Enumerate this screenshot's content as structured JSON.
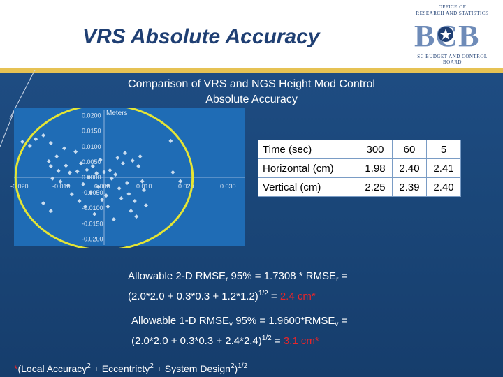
{
  "title": "VRS Absolute Accuracy",
  "logo": {
    "line1": "OFFICE OF",
    "line2": "RESEARCH AND STATISTICS",
    "main": "BCB",
    "bottom": "SC BUDGET AND CONTROL BOARD"
  },
  "chart_title_line1": "Comparison of VRS and NGS Height Mod Control",
  "chart_title_line2": "Absolute Accuracy",
  "chart_data": {
    "type": "scatter",
    "ylabel": "Meters",
    "x_ticks": [
      "-0.020",
      "-0.010",
      "0.000",
      "0.010",
      "0.020",
      "0.030"
    ],
    "y_ticks": [
      "0.0200",
      "0.0150",
      "0.0100",
      "0.0050",
      "0.0000",
      "-0.0050",
      "-0.0100",
      "-0.0150",
      "-0.0200"
    ],
    "xlim": [
      -0.02,
      0.03
    ],
    "ylim": [
      -0.02,
      0.02
    ],
    "points": [
      [
        -0.0195,
        0.0115
      ],
      [
        -0.0177,
        0.0102
      ],
      [
        -0.0163,
        0.0124
      ],
      [
        -0.0145,
        0.0136
      ],
      [
        -0.0127,
        0.0111
      ],
      [
        -0.0132,
        0.0052
      ],
      [
        -0.0127,
        0.0036
      ],
      [
        -0.0123,
        -0.0004
      ],
      [
        -0.0113,
        0.0068
      ],
      [
        -0.0109,
        0.0021
      ],
      [
        -0.0104,
        -0.0014
      ],
      [
        -0.0095,
        0.0094
      ],
      [
        -0.0091,
        0.0038
      ],
      [
        -0.0086,
        -0.0027
      ],
      [
        -0.0082,
        0.0015
      ],
      [
        -0.0077,
        -0.0055
      ],
      [
        -0.0068,
        0.0083
      ],
      [
        -0.0064,
        0.0019
      ],
      [
        -0.0059,
        -0.0077
      ],
      [
        -0.0055,
        0.0045
      ],
      [
        -0.005,
        -0.0022
      ],
      [
        -0.0045,
        -0.0095
      ],
      [
        -0.0041,
        0.0024
      ],
      [
        -0.0036,
        0.0
      ],
      [
        -0.0032,
        -0.005
      ],
      [
        -0.0027,
        0.0036
      ],
      [
        -0.0023,
        -0.0119
      ],
      [
        -0.0018,
        0.0013
      ],
      [
        -0.0014,
        -0.0031
      ],
      [
        -0.0009,
        0.0057
      ],
      [
        -0.0005,
        -0.0073
      ],
      [
        0.0,
        0.0017
      ],
      [
        0.0005,
        -0.0059
      ],
      [
        0.0009,
        -0.0095
      ],
      [
        0.0014,
        0.0023
      ],
      [
        0.0018,
        -0.0004
      ],
      [
        0.0023,
        -0.0136
      ],
      [
        0.0027,
        0.0009
      ],
      [
        0.0032,
        0.0063
      ],
      [
        0.0036,
        -0.0036
      ],
      [
        0.0041,
        -0.0068
      ],
      [
        0.0045,
        0.0045
      ],
      [
        0.005,
        0.0079
      ],
      [
        0.0055,
        -0.0018
      ],
      [
        0.0059,
        -0.0054
      ],
      [
        0.0064,
        -0.0109
      ],
      [
        0.0068,
        0.0054
      ],
      [
        0.0073,
        -0.0077
      ],
      [
        0.0077,
        -0.0127
      ],
      [
        0.0082,
        0.0036
      ],
      [
        0.0086,
        0.0068
      ],
      [
        0.0091,
        -0.0013
      ],
      [
        0.0095,
        -0.0041
      ],
      [
        0.01,
        -0.0091
      ],
      [
        -0.0145,
        -0.0084
      ],
      [
        -0.0127,
        -0.0109
      ],
      [
        0.0159,
        0.0118
      ],
      [
        0.0164,
        0.0016
      ],
      [
        0.0182,
        -0.0013
      ],
      [
        0.0009,
        -0.0027
      ]
    ],
    "circle": {
      "cx": 0.0,
      "cy": 0.0,
      "r": 0.024
    }
  },
  "table": {
    "rows": [
      {
        "label": "Time (sec)",
        "values": [
          "300",
          "60",
          "5"
        ]
      },
      {
        "label": "Horizontal (cm)",
        "values": [
          "1.98",
          "2.40",
          "2.41"
        ]
      },
      {
        "label": "Vertical (cm)",
        "values": [
          "2.25",
          "2.39",
          "2.40"
        ]
      }
    ]
  },
  "formula1": {
    "line1_a": "Allowable 2-D RMSE",
    "line1_sub1": "r",
    "line1_b": " 95% = 1.7308 * RMSE",
    "line1_sub2": "r",
    "line1_c": " =",
    "line2_a": "(2.0*2.0 + 0.3*0.3 + 1.2*1.2)",
    "line2_sup": "1/2",
    "line2_b": " = ",
    "result": "2.4 cm*"
  },
  "formula2": {
    "line1_a": "Allowable 1-D RMSE",
    "line1_sub1": "v",
    "line1_b": " 95% = 1.9600*RMSE",
    "line1_sub2": "v",
    "line1_c": " =",
    "line2_a": "(2.0*2.0 + 0.3*0.3 + 2.4*2.4)",
    "line2_sup": "1/2",
    "line2_b": " = ",
    "result": "3.1 cm*"
  },
  "footnote": {
    "star": "*",
    "a": "(Local Accuracy",
    "sup1": "2",
    "b": " + Eccentricty",
    "sup2": "2",
    "c": " + System Design",
    "sup3": "2",
    "d": ")",
    "sup4": "1/2"
  }
}
